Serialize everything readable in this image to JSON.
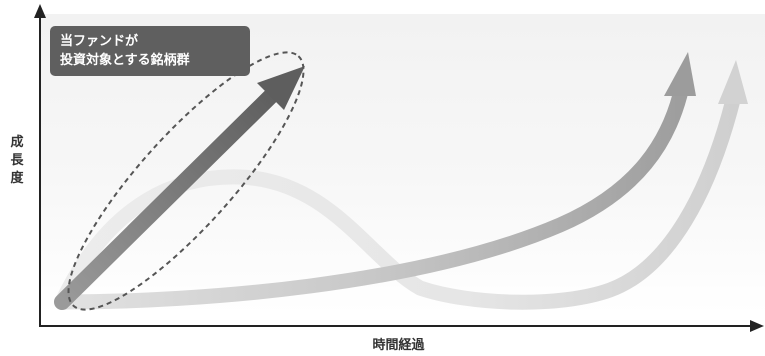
{
  "callout": {
    "line1": "当ファンドが",
    "line2": "投資対象とする銘柄群"
  },
  "axes": {
    "y_label_chars": [
      "成",
      "長",
      "度"
    ],
    "x_label": "時間経過"
  },
  "colors": {
    "axis": "#222222",
    "target_arrow": "#6a6a6a",
    "callout_bg": "#5f5f5f",
    "ellipse_dash": "#555555",
    "curve_mid_gray": "#a8a8a8",
    "curve_light_gray": "#e0e0e0",
    "background_band": "#f0f0f0"
  }
}
